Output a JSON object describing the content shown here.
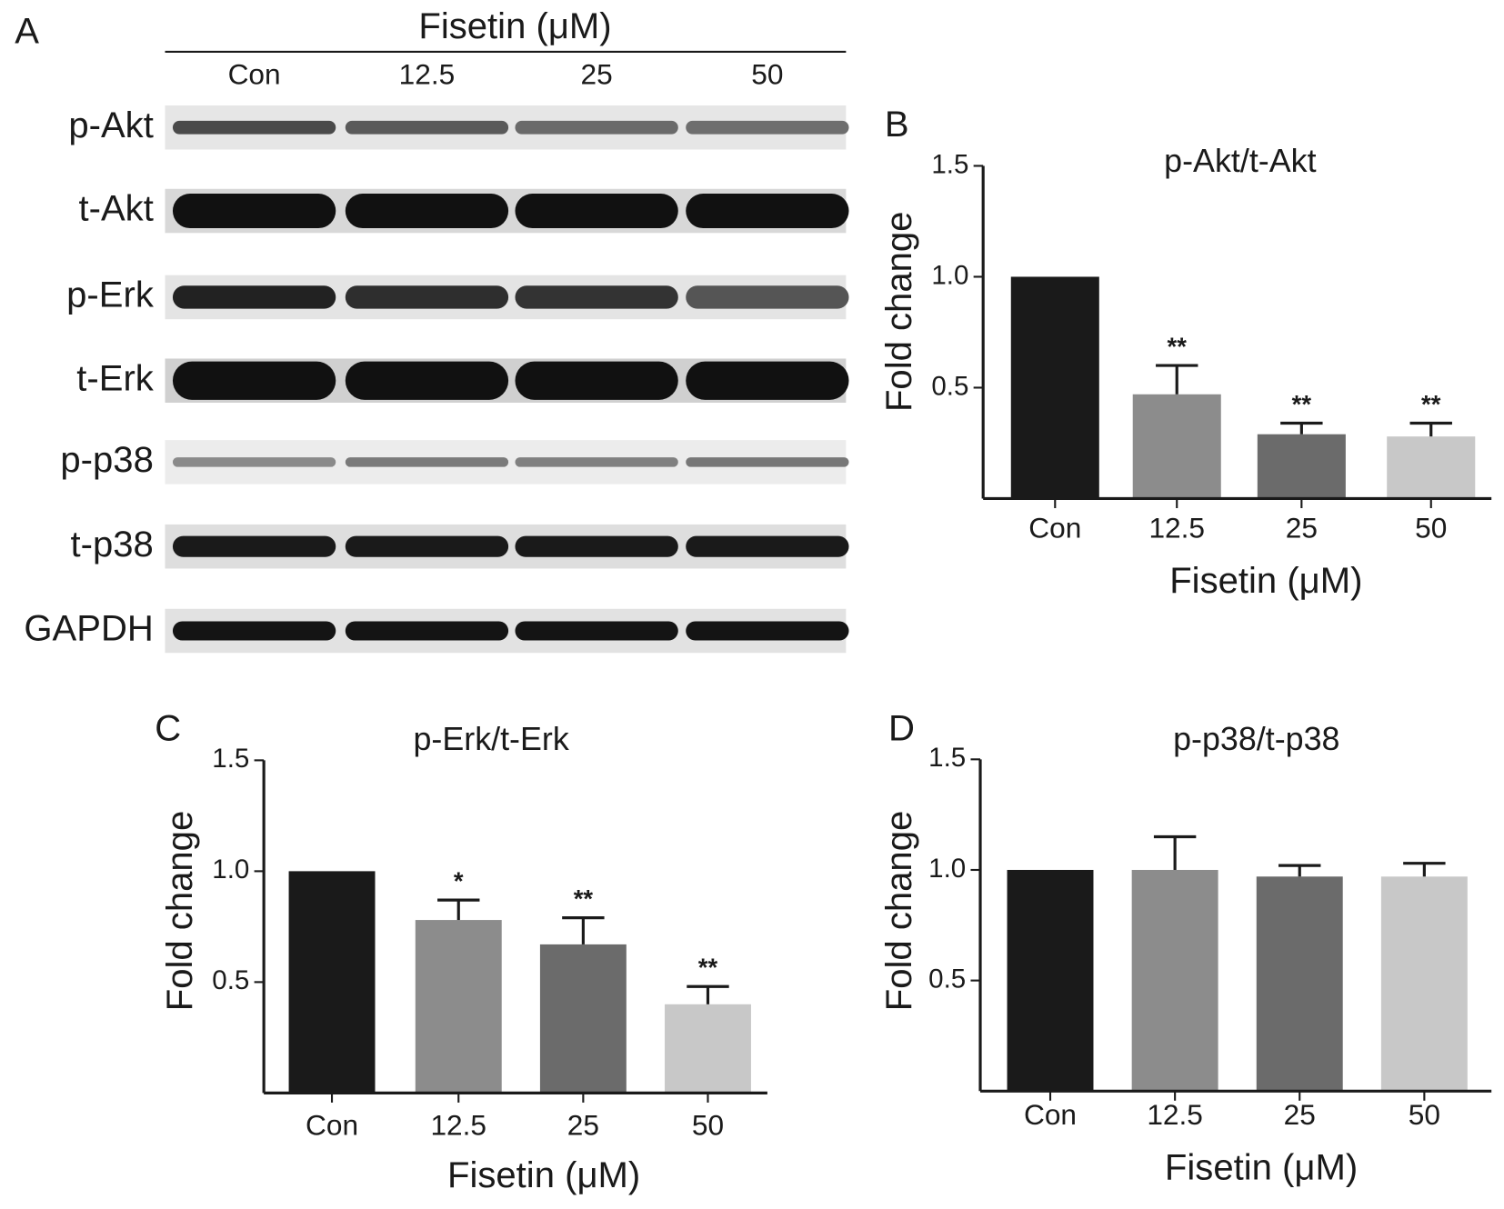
{
  "blot": {
    "panel_label": "A",
    "header": "Fisetin (μM)",
    "lanes": [
      "Con",
      "12.5",
      "25",
      "50"
    ],
    "rows": [
      "p-Akt",
      "t-Akt",
      "p-Erk",
      "t-Erk",
      "p-p38",
      "t-p38",
      "GAPDH"
    ]
  },
  "chart_data": [
    {
      "type": "bar",
      "panel_label": "B",
      "title": "p-Akt/t-Akt",
      "xlabel": "Fisetin (μM)",
      "ylabel": "Fold change",
      "categories": [
        "Con",
        "12.5",
        "25",
        "50"
      ],
      "values": [
        1.0,
        0.47,
        0.29,
        0.28
      ],
      "errors": [
        0,
        0.13,
        0.05,
        0.06
      ],
      "annotations": [
        null,
        "**",
        "**",
        "**"
      ],
      "colors": [
        "#1a1a1a",
        "#8c8c8c",
        "#6b6b6b",
        "#c8c8c8"
      ],
      "ylim": [
        0,
        1.5
      ],
      "yticks": [
        0.5,
        {
          "value": 1,
          "label": "1.0"
        },
        1.5
      ]
    },
    {
      "type": "bar",
      "panel_label": "C",
      "title": "p-Erk/t-Erk",
      "xlabel": "Fisetin (μM)",
      "ylabel": "Fold change",
      "categories": [
        "Con",
        "12.5",
        "25",
        "50"
      ],
      "values": [
        1.0,
        0.78,
        0.67,
        0.4
      ],
      "errors": [
        0,
        0.09,
        0.12,
        0.08
      ],
      "annotations": [
        null,
        "*",
        "**",
        "**"
      ],
      "colors": [
        "#1a1a1a",
        "#8c8c8c",
        "#6b6b6b",
        "#c8c8c8"
      ],
      "ylim": [
        0,
        1.5
      ],
      "yticks": [
        0.5,
        {
          "value": 1,
          "label": "1.0"
        },
        1.5
      ]
    },
    {
      "type": "bar",
      "panel_label": "D",
      "title": "p-p38/t-p38",
      "xlabel": "Fisetin (μM)",
      "ylabel": "Fold change",
      "categories": [
        "Con",
        "12.5",
        "25",
        "50"
      ],
      "values": [
        1.0,
        1.0,
        0.97,
        0.97
      ],
      "errors": [
        0,
        0.15,
        0.05,
        0.06
      ],
      "annotations": [
        null,
        null,
        null,
        null
      ],
      "colors": [
        "#1a1a1a",
        "#8c8c8c",
        "#6b6b6b",
        "#c8c8c8"
      ],
      "ylim": [
        0,
        1.5
      ],
      "yticks": [
        0.5,
        {
          "value": 1,
          "label": "1.0"
        },
        1.5
      ]
    }
  ]
}
